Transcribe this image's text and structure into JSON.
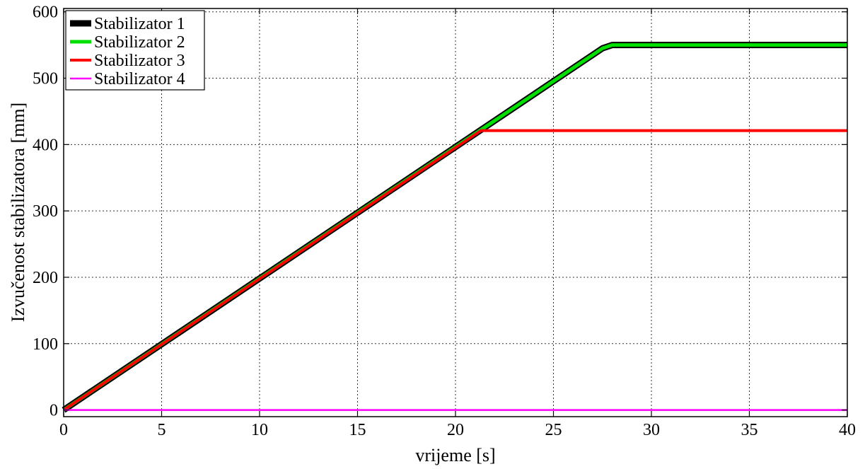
{
  "chart_data": {
    "type": "line",
    "xlabel": "vrijeme [s]",
    "ylabel": "Izvučenost stabilizatora [mm]",
    "xlim": [
      0,
      40
    ],
    "ylim": [
      -10,
      605
    ],
    "xticks": [
      "0",
      "5",
      "10",
      "15",
      "20",
      "25",
      "30",
      "35",
      "40"
    ],
    "yticks": [
      "0",
      "100",
      "200",
      "300",
      "400",
      "500",
      "600"
    ],
    "grid": true,
    "legend_position": "top-left",
    "series": [
      {
        "name": "Stabilizator 1",
        "color": "#000000",
        "x": [
          0,
          27.5,
          28,
          40
        ],
        "y": [
          0,
          545,
          550,
          550
        ]
      },
      {
        "name": "Stabilizator 2",
        "color": "#00e000",
        "x": [
          0,
          27.5,
          28,
          40
        ],
        "y": [
          0,
          545,
          550,
          550
        ]
      },
      {
        "name": "Stabilizator 3",
        "color": "#ff0000",
        "x": [
          0,
          21.3,
          40
        ],
        "y": [
          0,
          421,
          421
        ]
      },
      {
        "name": "Stabilizator 4",
        "color": "#ff00ff",
        "x": [
          0,
          40
        ],
        "y": [
          0,
          0
        ]
      }
    ]
  }
}
